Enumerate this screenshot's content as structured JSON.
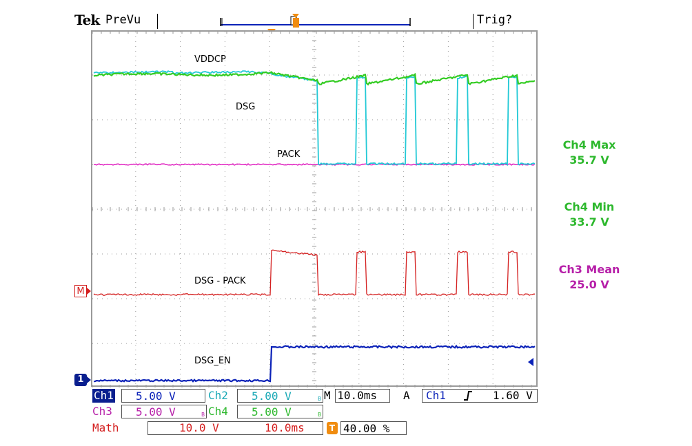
{
  "header": {
    "brand": "Tek",
    "mode": "PreVu",
    "trigger_status": "Trig?",
    "trigger_marker": "T"
  },
  "screen": {
    "colors": {
      "ch1": "#0b22b8",
      "ch2": "#22c9d6",
      "ch3": "#e020c0",
      "ch4": "#33cc22",
      "math": "#d42020",
      "trigger": "#f08c10",
      "grid": "#9a9a9a"
    },
    "labels": {
      "vddcp": "VDDCP",
      "dsg": "DSG",
      "pack": "PACK",
      "dsg_pack": "DSG - PACK",
      "dsg_en": "DSG_EN"
    },
    "markers": {
      "math": "M",
      "ch1": "1"
    }
  },
  "measurements": [
    {
      "label": "Ch4 Max",
      "value": "35.7 V",
      "color": "#2db82d"
    },
    {
      "label": "Ch4 Min",
      "value": "33.7 V",
      "color": "#2db82d"
    },
    {
      "label": "Ch3 Mean",
      "value": "25.0 V",
      "color": "#b61fa8"
    }
  ],
  "status_bar": {
    "ch1": {
      "name": "Ch1",
      "scale": "5.00 V"
    },
    "ch2": {
      "name": "Ch2",
      "scale": "5.00 V",
      "bw": "B"
    },
    "ch3": {
      "name": "Ch3",
      "scale": "5.00 V",
      "bw": "B"
    },
    "ch4": {
      "name": "Ch4",
      "scale": "5.00 V",
      "bw": "B"
    },
    "timebase": "M 10.0ms",
    "acq_mode": "A",
    "trig_source": "Ch1",
    "trig_slope_icon": "rising-edge-icon",
    "trig_level": "1.60 V",
    "math": {
      "name": "Math",
      "scale": "10.0 V",
      "time": "10.0ms"
    },
    "trigger_position": "40.00 %"
  }
}
